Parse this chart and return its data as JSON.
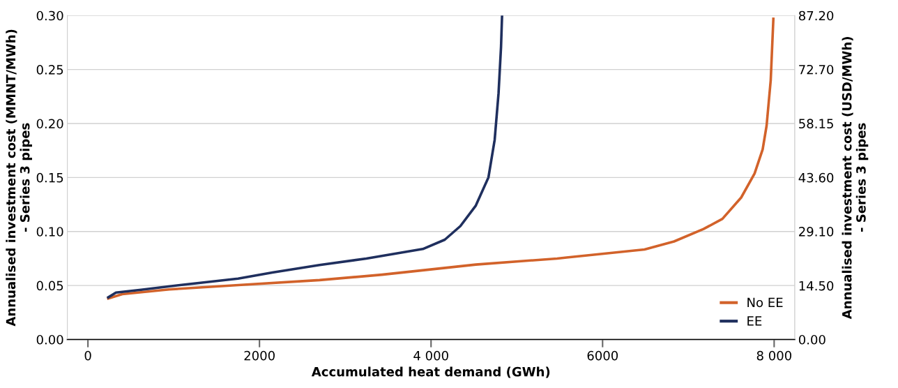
{
  "chart_data": {
    "type": "line",
    "xlabel": "Accumulated heat demand (GWh)",
    "ylabel": "Annualised investment cost (MMNT/MWh)\n- Series 3 pipes",
    "y2label": "Annualised investment cost (USD/MWh)\n- Series 3 pipes",
    "series": [
      {
        "name": "No EE",
        "color": "#d2622a",
        "x": [
          237,
          400,
          948,
          1787,
          2700,
          3427,
          4522,
          5470,
          5581,
          6489,
          6833,
          7177,
          7397,
          7616,
          7772,
          7866,
          7912,
          7960,
          7991
        ],
        "values": [
          0.038,
          0.042,
          0.0464,
          0.0506,
          0.055,
          0.06,
          0.0694,
          0.075,
          0.0759,
          0.0834,
          0.0908,
          0.1023,
          0.1117,
          0.1315,
          0.1537,
          0.176,
          0.198,
          0.24,
          0.297
        ]
      },
      {
        "name": "EE",
        "color": "#1f2f5e",
        "x": [
          237,
          327,
          619,
          1093,
          1750,
          2150,
          2700,
          3246,
          3904,
          4160,
          4342,
          4522,
          4669,
          4742,
          4787,
          4816,
          4828
        ],
        "values": [
          0.039,
          0.0435,
          0.046,
          0.0506,
          0.0564,
          0.062,
          0.069,
          0.075,
          0.0838,
          0.0924,
          0.105,
          0.124,
          0.15,
          0.185,
          0.228,
          0.271,
          0.3
        ]
      }
    ],
    "xlim": [
      -240,
      8240
    ],
    "xticks": [
      0,
      2000,
      {
        "value": 4000,
        "label": "4 000"
      },
      6000,
      {
        "value": 8000,
        "label": "8 000"
      }
    ],
    "ylim": [
      0,
      0.3
    ],
    "yticks": [
      {
        "value": 0,
        "label": "0.00"
      },
      {
        "value": 0.05,
        "label": "0.05"
      },
      {
        "value": 0.1,
        "label": "0.10"
      },
      {
        "value": 0.15,
        "label": "0.15"
      },
      {
        "value": 0.2,
        "label": "0.20"
      },
      {
        "value": 0.25,
        "label": "0.25"
      },
      {
        "value": 0.3,
        "label": "0.30"
      }
    ],
    "y2lim": [
      0,
      87.2
    ],
    "y2ticks": [
      {
        "value": 0,
        "label": "0.00"
      },
      {
        "value": 14.5,
        "label": "14.50"
      },
      {
        "value": 29.1,
        "label": "29.10"
      },
      {
        "value": 43.6,
        "label": "43.60"
      },
      {
        "value": 58.15,
        "label": "58.15"
      },
      {
        "value": 72.7,
        "label": "72.70"
      },
      {
        "value": 87.2,
        "label": "87.20"
      }
    ],
    "grid": "y",
    "legend": "bottom right",
    "marker": "none",
    "line_style": "solid"
  }
}
